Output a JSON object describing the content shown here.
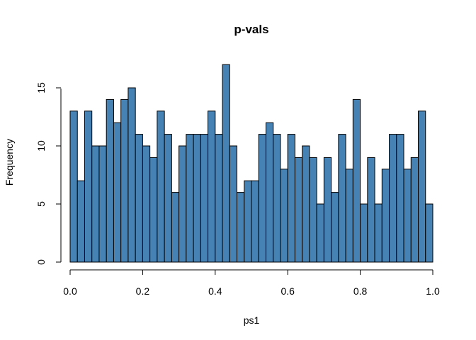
{
  "chart_data": {
    "type": "bar",
    "title": "p-vals",
    "xlabel": "ps1",
    "ylabel": "Frequency",
    "bar_color": "#4682B4",
    "edge_color": "#000000",
    "bin_edges": [
      0.0,
      0.02,
      0.04,
      0.06,
      0.08,
      0.1,
      0.12,
      0.14,
      0.16,
      0.18,
      0.2,
      0.22,
      0.24,
      0.26,
      0.28,
      0.3,
      0.32,
      0.34,
      0.36,
      0.38,
      0.4,
      0.42,
      0.44,
      0.46,
      0.48,
      0.5,
      0.52,
      0.54,
      0.56,
      0.58,
      0.6,
      0.62,
      0.64,
      0.66,
      0.68,
      0.7,
      0.72,
      0.74,
      0.76,
      0.78,
      0.8,
      0.82,
      0.84,
      0.86,
      0.88,
      0.9,
      0.92,
      0.94,
      0.96,
      0.98,
      1.0
    ],
    "values": [
      13,
      7,
      13,
      10,
      10,
      14,
      12,
      14,
      15,
      11,
      10,
      9,
      13,
      11,
      6,
      10,
      11,
      11,
      11,
      13,
      11,
      17,
      10,
      6,
      7,
      7,
      11,
      12,
      11,
      8,
      11,
      9,
      10,
      9,
      5,
      9,
      6,
      11,
      8,
      14,
      5,
      9,
      5,
      8,
      11,
      11,
      8,
      9,
      13,
      5
    ],
    "xlim": [
      0,
      1
    ],
    "ylim": [
      0,
      17
    ],
    "xticks": [
      0,
      0.2,
      0.4,
      0.6,
      0.8,
      1.0
    ],
    "xtick_labels": [
      "0.0",
      "0.2",
      "0.4",
      "0.6",
      "0.8",
      "1.0"
    ],
    "yticks": [
      0,
      5,
      10,
      15
    ],
    "ytick_labels": [
      "0",
      "5",
      "10",
      "15"
    ],
    "grid": false
  }
}
